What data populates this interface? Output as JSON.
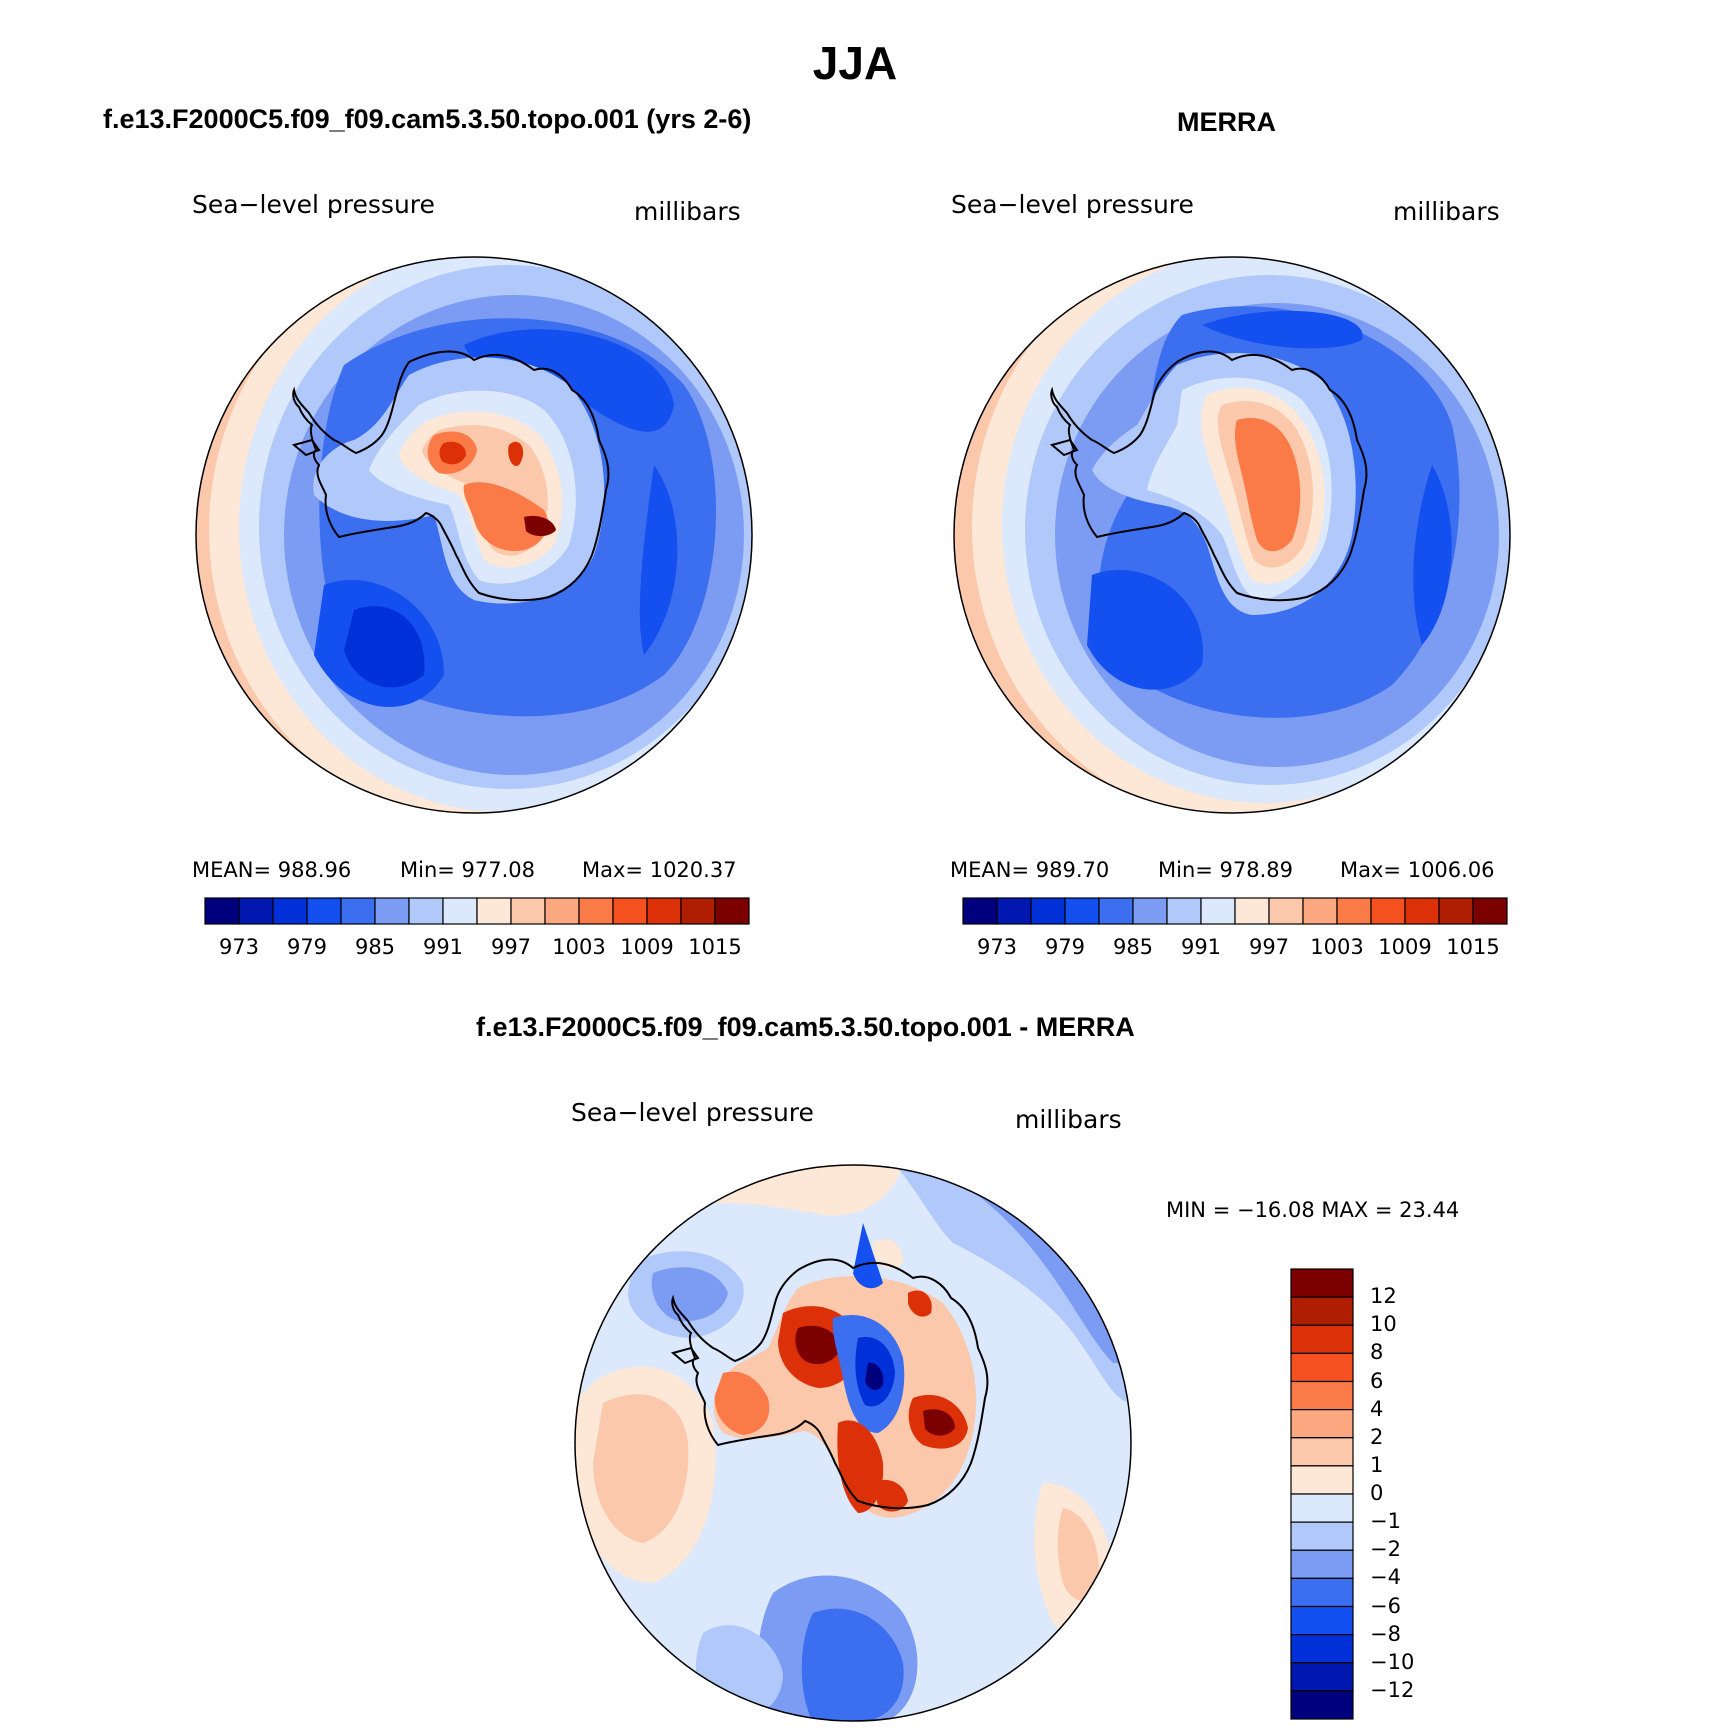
{
  "title": "JJA",
  "panels": [
    {
      "title": "f.e13.F2000C5.f09_f09.cam5.3.50.topo.001 (yrs 2-6)",
      "field": "Sea−level pressure",
      "units": "millibars",
      "mean_label": "MEAN=",
      "mean": "988.96",
      "min_label": "Min=",
      "min": "977.08",
      "max_label": "Max=",
      "max": "1020.37"
    },
    {
      "title": "MERRA",
      "field": "Sea−level pressure",
      "units": "millibars",
      "mean_label": "MEAN=",
      "mean": "989.70",
      "min_label": "Min=",
      "min": "978.89",
      "max_label": "Max=",
      "max": "1006.06"
    },
    {
      "title": "f.e13.F2000C5.f09_f09.cam5.3.50.topo.001 - MERRA",
      "field": "Sea−level pressure",
      "units": "millibars",
      "minmax": "MIN = −16.08 MAX =   23.44"
    }
  ],
  "colorbar_abs": {
    "colors": [
      "#00007f",
      "#0018b0",
      "#0030d8",
      "#1450f0",
      "#3c6ef0",
      "#7c9cf4",
      "#b0c8fa",
      "#dce8fc",
      "#fde8d8",
      "#fcc8ac",
      "#fba880",
      "#fa7a48",
      "#f55020",
      "#dc3008",
      "#b01e00",
      "#7c0000"
    ],
    "tick_labels": [
      "973",
      "979",
      "985",
      "991",
      "997",
      "1003",
      "1009",
      "1015"
    ]
  },
  "colorbar_diff": {
    "colors_top_to_bottom": [
      "#7c0000",
      "#b01e00",
      "#dc3008",
      "#f55020",
      "#fa7a48",
      "#fba880",
      "#fcc8ac",
      "#fde8d8",
      "#dce8fc",
      "#b0c8fa",
      "#7c9cf4",
      "#3c6ef0",
      "#1450f0",
      "#0030d8",
      "#0018b0",
      "#00007f"
    ],
    "tick_labels": [
      "12",
      "10",
      "8",
      "6",
      "4",
      "2",
      "1",
      "0",
      "−1",
      "−2",
      "−4",
      "−6",
      "−8",
      "−10",
      "−12"
    ]
  },
  "colors": {
    "outline": "#000000",
    "deep_blue": "#1450f0",
    "mid_blue": "#3c6ef0",
    "light_blue": "#7c9cf4",
    "pale_blue": "#b0c8fa",
    "very_pale_blue": "#dce8fc",
    "pale_red": "#fde8d8",
    "light_red": "#fcc8ac",
    "mid_red": "#fa7a48",
    "strong_red": "#dc3008",
    "dark_red": "#7c0000"
  }
}
